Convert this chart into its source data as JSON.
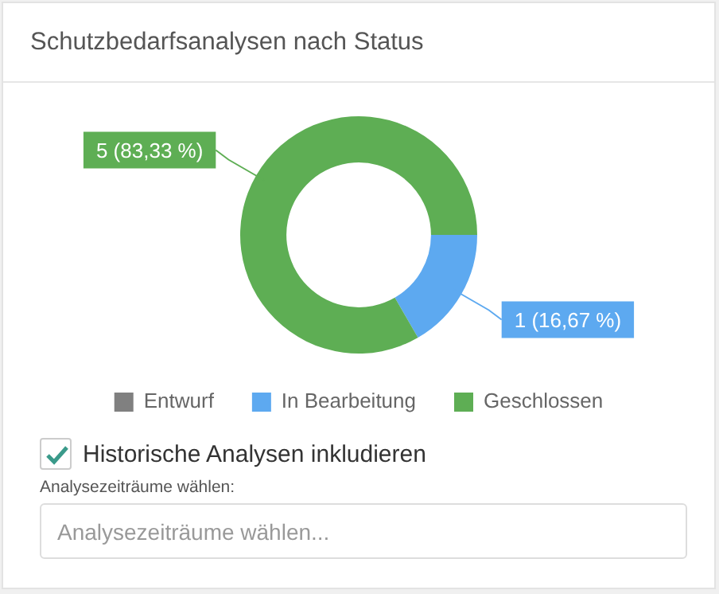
{
  "chart_data": {
    "type": "donut",
    "title": "Schutzbedarfsanalysen nach Status",
    "categories": [
      "Entwurf",
      "In Bearbeitung",
      "Geschlossen"
    ],
    "values": [
      0,
      1,
      5
    ],
    "colors": [
      "#808080",
      "#5da9f0",
      "#5eae54"
    ],
    "value_labels": [
      null,
      "1 (16,67 %)",
      "5 (83,33 %)"
    ],
    "legend": "bottom",
    "annotations": [
      "Historische Analysen inkludieren",
      "Analysezeiträume wählen:",
      "Analysezeiträume wählen..."
    ]
  }
}
